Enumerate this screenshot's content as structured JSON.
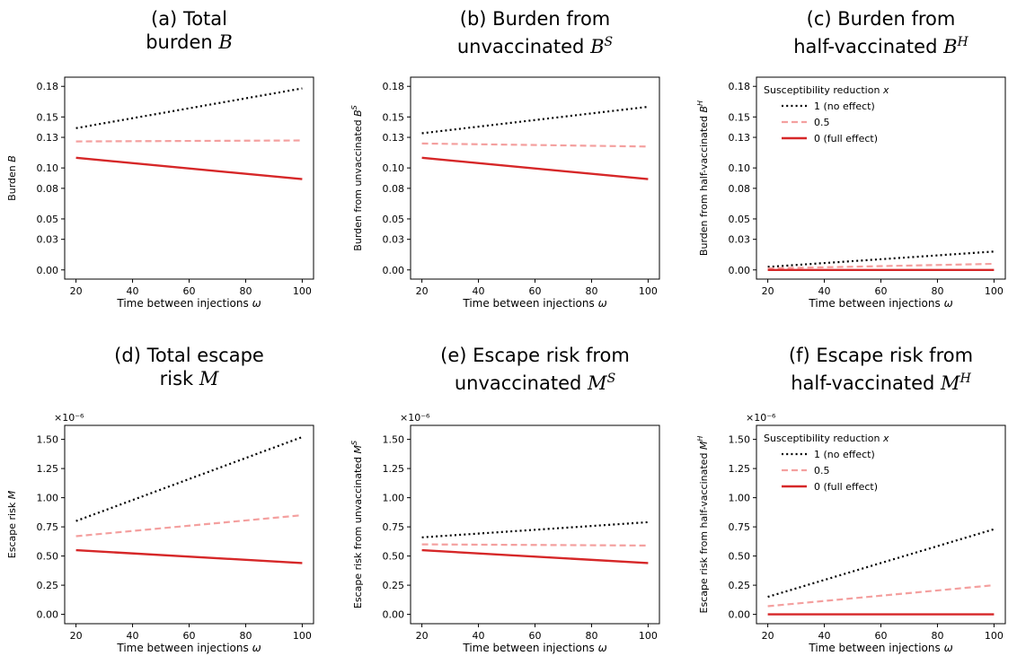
{
  "figure": {
    "legend_title": "Susceptibility reduction x",
    "legend_labels": [
      "1 (no effect)",
      "0.5",
      "0 (full effect)"
    ],
    "series_colors": [
      "#000000",
      "#f4a09f",
      "#d62728"
    ],
    "series_styles": [
      "dotted",
      "dashed",
      "solid"
    ]
  },
  "chart_data": [
    {
      "type": "line",
      "panel_label": "(a)",
      "title_line1": "Total",
      "title_line2": "burden",
      "title_symbol": "B",
      "title_sup": "",
      "xlabel": "Time between injections ω",
      "ylabel": "Burden B",
      "x_ticks": [
        "20",
        "40",
        "60",
        "80",
        "100"
      ],
      "y_ticks": [
        "0.00",
        "0.03",
        "0.05",
        "0.08",
        "0.10",
        "0.13",
        "0.15",
        "0.18"
      ],
      "xlim": [
        16,
        104
      ],
      "ylim": [
        -0.009,
        0.189
      ],
      "scale_factor": "",
      "legend": false,
      "x": [
        20,
        100
      ],
      "series": [
        {
          "name": "1 (no effect)",
          "values": [
            0.139,
            0.178
          ]
        },
        {
          "name": "0.5",
          "values": [
            0.126,
            0.127
          ]
        },
        {
          "name": "0 (full effect)",
          "values": [
            0.11,
            0.089
          ]
        }
      ]
    },
    {
      "type": "line",
      "panel_label": "(b)",
      "title_line1": "Burden from",
      "title_line2": "unvaccinated",
      "title_symbol": "B",
      "title_sup": "S",
      "xlabel": "Time between injections ω",
      "ylabel": "Burden from unvaccinated B^S",
      "x_ticks": [
        "20",
        "40",
        "60",
        "80",
        "100"
      ],
      "y_ticks": [
        "0.00",
        "0.03",
        "0.05",
        "0.08",
        "0.10",
        "0.13",
        "0.15",
        "0.18"
      ],
      "xlim": [
        16,
        104
      ],
      "ylim": [
        -0.009,
        0.189
      ],
      "scale_factor": "",
      "legend": false,
      "x": [
        20,
        100
      ],
      "series": [
        {
          "name": "1 (no effect)",
          "values": [
            0.134,
            0.16
          ]
        },
        {
          "name": "0.5",
          "values": [
            0.124,
            0.121
          ]
        },
        {
          "name": "0 (full effect)",
          "values": [
            0.11,
            0.089
          ]
        }
      ]
    },
    {
      "type": "line",
      "panel_label": "(c)",
      "title_line1": "Burden from",
      "title_line2": "half-vaccinated",
      "title_symbol": "B",
      "title_sup": "H",
      "xlabel": "Time between injections ω",
      "ylabel": "Burden from half-vaccinated B^H",
      "x_ticks": [
        "20",
        "40",
        "60",
        "80",
        "100"
      ],
      "y_ticks": [
        "0.00",
        "0.03",
        "0.05",
        "0.08",
        "0.10",
        "0.13",
        "0.15",
        "0.18"
      ],
      "xlim": [
        16,
        104
      ],
      "ylim": [
        -0.009,
        0.189
      ],
      "scale_factor": "",
      "legend": true,
      "x": [
        20,
        100
      ],
      "series": [
        {
          "name": "1 (no effect)",
          "values": [
            0.003,
            0.018
          ]
        },
        {
          "name": "0.5",
          "values": [
            0.0015,
            0.006
          ]
        },
        {
          "name": "0 (full effect)",
          "values": [
            0.0,
            0.0
          ]
        }
      ]
    },
    {
      "type": "line",
      "panel_label": "(d)",
      "title_line1": "Total escape",
      "title_line2": "risk",
      "title_symbol": "M",
      "title_sup": "",
      "xlabel": "Time between injections ω",
      "ylabel": "Escape risk M",
      "x_ticks": [
        "20",
        "40",
        "60",
        "80",
        "100"
      ],
      "y_ticks": [
        "0.00",
        "0.25",
        "0.50",
        "0.75",
        "1.00",
        "1.25",
        "1.50"
      ],
      "xlim": [
        16,
        104
      ],
      "ylim": [
        -0.08,
        1.62
      ],
      "scale_factor": "×10⁻⁶",
      "legend": false,
      "x": [
        20,
        100
      ],
      "series": [
        {
          "name": "1 (no effect)",
          "values": [
            0.8,
            1.52
          ]
        },
        {
          "name": "0.5",
          "values": [
            0.67,
            0.85
          ]
        },
        {
          "name": "0 (full effect)",
          "values": [
            0.55,
            0.44
          ]
        }
      ]
    },
    {
      "type": "line",
      "panel_label": "(e)",
      "title_line1": "Escape risk from",
      "title_line2": "unvaccinated",
      "title_symbol": "M",
      "title_sup": "S",
      "xlabel": "Time between injections ω",
      "ylabel": "Escape risk from unvaccinated M^S",
      "x_ticks": [
        "20",
        "40",
        "60",
        "80",
        "100"
      ],
      "y_ticks": [
        "0.00",
        "0.25",
        "0.50",
        "0.75",
        "1.00",
        "1.25",
        "1.50"
      ],
      "xlim": [
        16,
        104
      ],
      "ylim": [
        -0.08,
        1.62
      ],
      "scale_factor": "×10⁻⁶",
      "legend": false,
      "x": [
        20,
        100
      ],
      "series": [
        {
          "name": "1 (no effect)",
          "values": [
            0.66,
            0.79
          ]
        },
        {
          "name": "0.5",
          "values": [
            0.6,
            0.59
          ]
        },
        {
          "name": "0 (full effect)",
          "values": [
            0.55,
            0.44
          ]
        }
      ]
    },
    {
      "type": "line",
      "panel_label": "(f)",
      "title_line1": "Escape risk from",
      "title_line2": "half-vaccinated",
      "title_symbol": "M",
      "title_sup": "H",
      "xlabel": "Time between injections ω",
      "ylabel": "Escape risk from half-vaccinated M^H",
      "x_ticks": [
        "20",
        "40",
        "60",
        "80",
        "100"
      ],
      "y_ticks": [
        "0.00",
        "0.25",
        "0.50",
        "0.75",
        "1.00",
        "1.25",
        "1.50"
      ],
      "xlim": [
        16,
        104
      ],
      "ylim": [
        -0.08,
        1.62
      ],
      "scale_factor": "×10⁻⁶",
      "legend": true,
      "x": [
        20,
        100
      ],
      "series": [
        {
          "name": "1 (no effect)",
          "values": [
            0.15,
            0.73
          ]
        },
        {
          "name": "0.5",
          "values": [
            0.07,
            0.25
          ]
        },
        {
          "name": "0 (full effect)",
          "values": [
            0.0,
            0.0
          ]
        }
      ]
    }
  ]
}
